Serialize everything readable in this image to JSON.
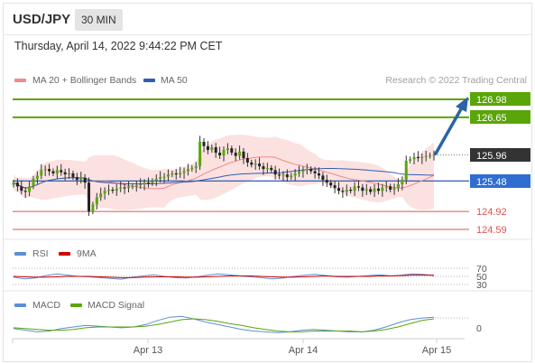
{
  "header": {
    "pair": "USD/JPY",
    "interval": "30 MIN"
  },
  "datetime": "Thursday, April 14, 2022 9:44:22 PM CET",
  "legend": {
    "ma20": "MA 20 + Bollinger Bands",
    "ma50": "MA 50",
    "credit": "Research © 2022 Trading Central"
  },
  "rsi_legend": {
    "rsi": "RSI",
    "ma": "9MA"
  },
  "macd_legend": {
    "macd": "MACD",
    "signal": "MACD Signal"
  },
  "colors": {
    "target": "#5aa50a",
    "support": "#e05050",
    "ma50": "#2f5fb0",
    "current": "#333333",
    "arrow": "#2a63a8",
    "candle": "#333333",
    "bollinger": "#fbd7d7"
  },
  "chart_data": [
    {
      "type": "candlestick",
      "title": "USD/JPY",
      "x_ticks": [
        "Apr 13",
        "Apr 14",
        "Apr 15"
      ],
      "ylim": [
        124.4,
        127.1
      ],
      "levels": {
        "targets": [
          {
            "label": "126.98",
            "value": 126.98
          },
          {
            "label": "126.65",
            "value": 126.65
          }
        ],
        "current": {
          "label": "125.96",
          "value": 125.96
        },
        "pivot": {
          "label": "125.48",
          "value": 125.48
        },
        "supports": [
          {
            "label": "124.92",
            "value": 124.92
          },
          {
            "label": "124.59",
            "value": 124.59
          }
        ]
      },
      "close": [
        125.45,
        125.38,
        125.3,
        125.28,
        125.38,
        125.52,
        125.58,
        125.68,
        125.7,
        125.66,
        125.62,
        125.68,
        125.64,
        125.6,
        125.62,
        125.55,
        125.5,
        125.54,
        125.45,
        124.92,
        125.05,
        125.18,
        125.25,
        125.3,
        125.32,
        125.3,
        125.34,
        125.36,
        125.35,
        125.38,
        125.38,
        125.4,
        125.42,
        125.45,
        125.44,
        125.48,
        125.52,
        125.55,
        125.56,
        125.6,
        125.62,
        125.6,
        125.63,
        125.66,
        125.7,
        125.72,
        125.75,
        126.2,
        126.12,
        126.05,
        126.1,
        126.0,
        125.95,
        126.05,
        126.08,
        126.0,
        125.94,
        126.02,
        125.9,
        125.82,
        125.78,
        125.8,
        125.75,
        125.7,
        125.72,
        125.68,
        125.6,
        125.58,
        125.6,
        125.55,
        125.58,
        125.62,
        125.65,
        125.68,
        125.7,
        125.66,
        125.62,
        125.58,
        125.5,
        125.45,
        125.4,
        125.35,
        125.3,
        125.28,
        125.32,
        125.3,
        125.38,
        125.36,
        125.3,
        125.33,
        125.28,
        125.34,
        125.3,
        125.36,
        125.38,
        125.32,
        125.35,
        125.42,
        125.5,
        125.85,
        125.88,
        125.92,
        125.9,
        125.92,
        125.94,
        125.95,
        125.96
      ]
    },
    {
      "type": "line",
      "title": "RSI",
      "series": [
        {
          "name": "RSI",
          "values": [
            48,
            44,
            46,
            52,
            56,
            53,
            50,
            49,
            47,
            45,
            43,
            48,
            51,
            54,
            50,
            47,
            46,
            49,
            53,
            56,
            54,
            51,
            49,
            47,
            44,
            46,
            50,
            53,
            55,
            52,
            49,
            48,
            50,
            52,
            54,
            51,
            53,
            56,
            55,
            52
          ]
        },
        {
          "name": "9MA",
          "values": [
            50,
            49,
            48,
            48,
            49,
            50,
            50,
            50,
            49,
            48,
            47,
            47,
            48,
            49,
            49,
            49,
            48,
            48,
            49,
            50,
            51,
            51,
            51,
            50,
            49,
            48,
            48,
            49,
            50,
            51,
            50,
            50,
            50,
            50,
            51,
            51,
            52,
            53,
            53,
            53
          ]
        }
      ],
      "y_ticks": [
        "70",
        "50",
        "30"
      ]
    },
    {
      "type": "line",
      "title": "MACD",
      "series": [
        {
          "name": "MACD",
          "values": [
            -0.02,
            -0.04,
            -0.06,
            -0.05,
            -0.02,
            0.0,
            0.02,
            0.01,
            0.0,
            -0.01,
            0.0,
            0.03,
            0.08,
            0.12,
            0.13,
            0.1,
            0.06,
            0.03,
            0.0,
            -0.03,
            -0.05,
            -0.06,
            -0.07,
            -0.06,
            -0.04,
            -0.03,
            -0.04,
            -0.05,
            -0.06,
            -0.06,
            -0.04,
            0.0,
            0.05,
            0.09,
            0.11,
            0.12
          ]
        },
        {
          "name": "MACD Signal",
          "values": [
            -0.01,
            -0.02,
            -0.03,
            -0.04,
            -0.04,
            -0.03,
            -0.01,
            0.0,
            0.0,
            0.0,
            0.0,
            0.01,
            0.03,
            0.06,
            0.09,
            0.1,
            0.09,
            0.07,
            0.04,
            0.02,
            -0.01,
            -0.03,
            -0.05,
            -0.06,
            -0.06,
            -0.05,
            -0.05,
            -0.05,
            -0.05,
            -0.06,
            -0.05,
            -0.03,
            0.0,
            0.04,
            0.08,
            0.1
          ]
        }
      ],
      "y_ticks": [
        "0"
      ]
    }
  ]
}
